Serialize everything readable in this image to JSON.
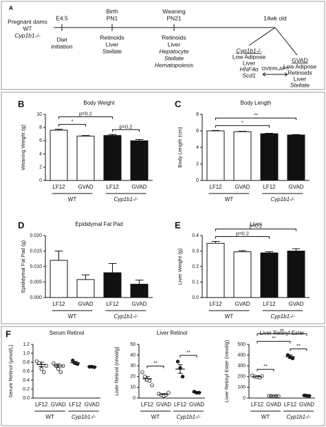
{
  "timeline": {
    "panel": "A",
    "start": [
      "Pregnant dams",
      "WT",
      "Cyp1b1-/-"
    ],
    "events": [
      {
        "above": [
          "E4.5"
        ],
        "below": [
          "Diet",
          "initiation"
        ]
      },
      {
        "above": [
          "Birth",
          "PN1"
        ],
        "below": [
          "Retinoids",
          "Liver",
          "Stellate"
        ]
      },
      {
        "above": [
          "Weaning",
          "PN21"
        ],
        "below": [
          "Retinoids",
          "Liver",
          "Hepatocyte",
          "Stellate",
          "Hematopoiesis"
        ]
      },
      {
        "above": [
          "14wk old"
        ]
      }
    ],
    "outcomes": [
      {
        "lines": [
          "Cyp1b1-/-",
          "Low Adipose",
          "Liver",
          "HNF4α",
          "Scd1"
        ]
      },
      {
        "lines": [
          "GVAD",
          "Low Adipose",
          "Retinoids",
          "Liver",
          "Stellate"
        ]
      }
    ],
    "link": "OVERLAP?"
  },
  "chart_data": [
    {
      "type": "bar",
      "panel": "B",
      "title": "Body Weight",
      "ylabel": "Weaning Weight (g)",
      "categories": [
        "LF12",
        "GVAD",
        "LF12",
        "GVAD"
      ],
      "groups": [
        {
          "name": "WT",
          "from": 0,
          "to": 1
        },
        {
          "name": "Cyp1b1-/-",
          "from": 2,
          "to": 3,
          "italic": true
        }
      ],
      "values": [
        7.6,
        6.7,
        6.8,
        6.0
      ],
      "errors": [
        0.15,
        0.1,
        0.15,
        0.2
      ],
      "colors": [
        "#ffffff",
        "#ffffff",
        "#111111",
        "#111111"
      ],
      "ylim": [
        0,
        10
      ],
      "yticks": [
        0,
        2,
        4,
        6,
        8,
        10
      ],
      "annotations": [
        {
          "text": "*",
          "from": 0,
          "to": 1
        },
        {
          "text": "p=0.2",
          "from": 2,
          "to": 3
        },
        {
          "text": "p=0.2",
          "from": 0,
          "to": 2
        }
      ]
    },
    {
      "type": "bar",
      "panel": "C",
      "title": "Body Length",
      "ylabel": "Body Length (cm)",
      "categories": [
        "LF12",
        "GVAD",
        "LF12",
        "GVAD"
      ],
      "groups": [
        {
          "name": "WT",
          "from": 0,
          "to": 1
        },
        {
          "name": "Cyp1b1-/-",
          "from": 2,
          "to": 3,
          "italic": true
        }
      ],
      "values": [
        6.0,
        5.9,
        5.65,
        5.5
      ],
      "errors": [
        0.05,
        0.05,
        0.06,
        0.05
      ],
      "colors": [
        "#ffffff",
        "#ffffff",
        "#111111",
        "#111111"
      ],
      "ylim": [
        0,
        8
      ],
      "yticks": [
        0,
        2,
        4,
        6,
        8
      ],
      "annotations": [
        {
          "text": "*",
          "from": 0,
          "to": 2
        },
        {
          "text": "**",
          "from": 0,
          "to": 3
        }
      ]
    },
    {
      "type": "bar",
      "panel": "D",
      "title": "Epididymal Fat Pad",
      "ylabel": "Epididymal Fat Pad (g)",
      "categories": [
        "LF12",
        "GVAD",
        "LF12",
        "GVAD"
      ],
      "groups": [
        {
          "name": "WT",
          "from": 0,
          "to": 1
        },
        {
          "name": "Cyp1b1-/-",
          "from": 2,
          "to": 3,
          "italic": true
        }
      ],
      "values": [
        0.012,
        0.0058,
        0.008,
        0.0043
      ],
      "errors": [
        0.003,
        0.0015,
        0.003,
        0.0013
      ],
      "colors": [
        "#ffffff",
        "#ffffff",
        "#111111",
        "#111111"
      ],
      "ylim": [
        0,
        0.02
      ],
      "yticks": [
        {
          "value": 0,
          "label": "0.000"
        },
        {
          "value": 0.005,
          "label": "0.005"
        },
        {
          "value": 0.01,
          "label": "0.010"
        },
        {
          "value": 0.015,
          "label": "0.015"
        },
        {
          "value": 0.02,
          "label": "0.020"
        }
      ]
    },
    {
      "type": "bar",
      "panel": "E",
      "title": "Liver",
      "ylabel": "Liver Weight (g)",
      "categories": [
        "LF12",
        "GVAD",
        "LF12",
        "GVAD"
      ],
      "groups": [
        {
          "name": "WT",
          "from": 0,
          "to": 1
        },
        {
          "name": "Cyp1b1-/-",
          "from": 2,
          "to": 3,
          "italic": true
        }
      ],
      "values": [
        0.35,
        0.295,
        0.288,
        0.3
      ],
      "errors": [
        0.012,
        0.008,
        0.008,
        0.015
      ],
      "colors": [
        "#ffffff",
        "#ffffff",
        "#111111",
        "#111111"
      ],
      "ylim": [
        0,
        0.4
      ],
      "yticks": [
        {
          "value": 0,
          "label": "0.0"
        },
        0.1,
        0.2,
        0.3,
        0.4
      ],
      "annotations": [
        {
          "text": "p=0.2",
          "from": 0,
          "to": 2
        },
        {
          "text": "p=0.2",
          "from": 0,
          "to": 3
        }
      ]
    },
    {
      "type": "strip",
      "panel": "F",
      "title": "Serum Retinol",
      "ylabel": "Serum Retinol (μmol/L)",
      "categories": [
        "LF12",
        "GVAD",
        "LF12",
        "GVAD"
      ],
      "groups": [
        {
          "name": "WT",
          "from": 0,
          "to": 1
        },
        {
          "name": "Cyp1b1-/-",
          "from": 2,
          "to": 3,
          "italic": true
        }
      ],
      "points": [
        [
          0.82,
          0.78,
          0.65,
          0.58,
          0.72
        ],
        [
          0.78,
          0.72,
          0.65,
          0.58,
          0.72
        ],
        [
          0.84,
          0.78,
          0.76
        ],
        [
          0.7,
          0.7,
          0.69
        ]
      ],
      "values": [
        0.75,
        0.72,
        0.79,
        0.7
      ],
      "errors": [
        0.05,
        0.04,
        0.03,
        0.01
      ],
      "colors": [
        "#ffffff",
        "#ffffff",
        "#222222",
        "#222222"
      ],
      "ylim": [
        0,
        1.2
      ],
      "yticks": [
        {
          "value": 0,
          "label": "0.0"
        },
        0.2,
        0.4,
        0.6,
        0.8,
        {
          "value": 1,
          "label": "1.0"
        },
        1.2
      ]
    },
    {
      "type": "strip",
      "title": "Liver Retinol",
      "ylabel": "Liver Retinol (nmol/g)",
      "categories": [
        "LF12",
        "GVAD",
        "LF12",
        "GVAD"
      ],
      "groups": [
        {
          "name": "WT",
          "from": 0,
          "to": 1
        },
        {
          "name": "Cyp1b1-/-",
          "from": 2,
          "to": 3,
          "italic": true
        }
      ],
      "points": [
        [
          24,
          20,
          17,
          16,
          12
        ],
        [
          4,
          3,
          2,
          3,
          5
        ],
        [
          34,
          28,
          20
        ],
        [
          6,
          5,
          5
        ]
      ],
      "values": [
        18,
        3.5,
        27,
        5.5
      ],
      "errors": [
        2,
        0.6,
        4,
        0.3
      ],
      "colors": [
        "#ffffff",
        "#ffffff",
        "#222222",
        "#222222"
      ],
      "ylim": [
        0,
        50
      ],
      "yticks": [
        0,
        10,
        20,
        30,
        40,
        50
      ],
      "annotations": [
        {
          "text": "**",
          "from": 0,
          "to": 1
        },
        {
          "text": "**",
          "from": 2,
          "to": 3
        }
      ]
    },
    {
      "type": "strip",
      "title": "Liver Retinyl Ester",
      "ylabel": "Liver Retinyl Ester (nmol/g)",
      "categories": [
        "LF12",
        "GVAD",
        "LF12",
        "GVAD"
      ],
      "groups": [
        {
          "name": "WT",
          "from": 0,
          "to": 1
        },
        {
          "name": "Cyp1b1-/-",
          "from": 2,
          "to": 3,
          "italic": true
        }
      ],
      "points": [
        [
          210,
          200,
          195,
          190,
          205
        ],
        [
          22,
          20,
          18,
          20,
          18
        ],
        [
          400,
          380,
          370
        ],
        [
          25,
          22,
          20
        ]
      ],
      "values": [
        200,
        20,
        385,
        22
      ],
      "errors": [
        8,
        1.5,
        15,
        2
      ],
      "colors": [
        "#ffffff",
        "#ffffff",
        "#222222",
        "#222222"
      ],
      "ylim": [
        0,
        500
      ],
      "yticks": [
        0,
        100,
        200,
        300,
        400,
        500
      ],
      "annotations": [
        {
          "text": "**",
          "from": 0,
          "to": 1
        },
        {
          "text": "**",
          "from": 2,
          "to": 3
        },
        {
          "text": "**",
          "from": 0,
          "to": 2
        },
        {
          "text": "**",
          "from": 0,
          "to": 3
        }
      ]
    }
  ]
}
